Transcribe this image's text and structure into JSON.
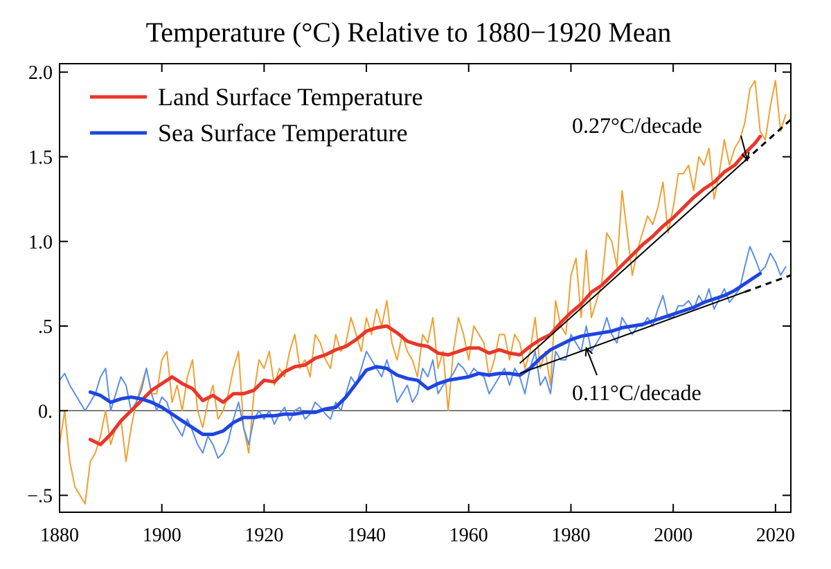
{
  "chart_data": {
    "type": "line",
    "title": "Temperature (°C) Relative to 1880−1920 Mean",
    "xlabel": "",
    "ylabel": "",
    "xlim": [
      1880,
      2023
    ],
    "ylim": [
      -0.6,
      2.05
    ],
    "x_ticks": [
      1880,
      1900,
      1920,
      1940,
      1960,
      1980,
      2000,
      2020
    ],
    "x_tick_labels": [
      "1880",
      "1900",
      "1920",
      "1940",
      "1960",
      "1980",
      "2000",
      "2020"
    ],
    "y_ticks": [
      -0.5,
      0,
      0.5,
      1.0,
      1.5,
      2.0
    ],
    "y_tick_labels": [
      "−.5",
      "0.",
      ".5",
      "1.0",
      "1.5",
      "2.0"
    ],
    "zero_line": true,
    "legend": {
      "position": "top-left",
      "entries": [
        {
          "label": "Land Surface Temperature",
          "color": "#e8372a"
        },
        {
          "label": "Sea Surface Temperature",
          "color": "#1f45e0"
        }
      ]
    },
    "series": [
      {
        "name": "Land Surface Temperature (running mean)",
        "color": "#e8372a",
        "x": [
          1886,
          1888,
          1890,
          1892,
          1894,
          1896,
          1898,
          1900,
          1902,
          1904,
          1906,
          1908,
          1910,
          1912,
          1914,
          1916,
          1918,
          1920,
          1922,
          1924,
          1926,
          1928,
          1930,
          1932,
          1934,
          1936,
          1938,
          1940,
          1942,
          1944,
          1946,
          1948,
          1950,
          1952,
          1954,
          1956,
          1958,
          1960,
          1962,
          1964,
          1966,
          1968,
          1970,
          1972,
          1974,
          1976,
          1978,
          1980,
          1982,
          1984,
          1986,
          1988,
          1990,
          1992,
          1994,
          1996,
          1998,
          2000,
          2002,
          2004,
          2006,
          2008,
          2010,
          2012,
          2014,
          2016,
          2017
        ],
        "y": [
          -0.17,
          -0.2,
          -0.14,
          -0.06,
          0.0,
          0.06,
          0.12,
          0.16,
          0.2,
          0.16,
          0.13,
          0.06,
          0.09,
          0.05,
          0.1,
          0.1,
          0.12,
          0.18,
          0.17,
          0.23,
          0.26,
          0.27,
          0.31,
          0.33,
          0.36,
          0.38,
          0.42,
          0.47,
          0.49,
          0.5,
          0.46,
          0.41,
          0.39,
          0.38,
          0.34,
          0.33,
          0.35,
          0.37,
          0.37,
          0.34,
          0.36,
          0.34,
          0.33,
          0.38,
          0.42,
          0.45,
          0.52,
          0.58,
          0.63,
          0.7,
          0.74,
          0.8,
          0.86,
          0.92,
          0.98,
          1.03,
          1.09,
          1.14,
          1.2,
          1.26,
          1.31,
          1.35,
          1.41,
          1.45,
          1.52,
          1.58,
          1.62
        ]
      },
      {
        "name": "Sea Surface Temperature (running mean)",
        "color": "#1f45e0",
        "x": [
          1886,
          1888,
          1890,
          1892,
          1894,
          1896,
          1898,
          1900,
          1902,
          1904,
          1906,
          1908,
          1910,
          1912,
          1914,
          1916,
          1918,
          1920,
          1922,
          1924,
          1926,
          1928,
          1930,
          1932,
          1934,
          1936,
          1938,
          1940,
          1942,
          1944,
          1946,
          1948,
          1950,
          1952,
          1954,
          1956,
          1958,
          1960,
          1962,
          1964,
          1966,
          1968,
          1970,
          1972,
          1974,
          1976,
          1978,
          1980,
          1982,
          1984,
          1986,
          1988,
          1990,
          1992,
          1994,
          1996,
          1998,
          2000,
          2002,
          2004,
          2006,
          2008,
          2010,
          2012,
          2014,
          2016,
          2017
        ],
        "y": [
          0.11,
          0.09,
          0.05,
          0.07,
          0.08,
          0.07,
          0.05,
          0.02,
          -0.02,
          -0.06,
          -0.1,
          -0.14,
          -0.14,
          -0.12,
          -0.07,
          -0.04,
          -0.04,
          -0.03,
          -0.03,
          -0.02,
          -0.02,
          -0.01,
          -0.01,
          0.01,
          0.02,
          0.08,
          0.16,
          0.24,
          0.26,
          0.25,
          0.21,
          0.19,
          0.18,
          0.13,
          0.16,
          0.18,
          0.19,
          0.2,
          0.22,
          0.21,
          0.22,
          0.22,
          0.21,
          0.25,
          0.31,
          0.36,
          0.39,
          0.42,
          0.44,
          0.45,
          0.46,
          0.47,
          0.49,
          0.5,
          0.51,
          0.53,
          0.55,
          0.57,
          0.59,
          0.61,
          0.64,
          0.66,
          0.68,
          0.71,
          0.75,
          0.79,
          0.81
        ]
      },
      {
        "name": "Land Surface Temperature (monthly)",
        "color": "#f0a030",
        "x": [
          1880,
          1881,
          1882,
          1883,
          1884,
          1885,
          1886,
          1887,
          1888,
          1889,
          1890,
          1891,
          1892,
          1893,
          1894,
          1895,
          1896,
          1897,
          1898,
          1899,
          1900,
          1901,
          1902,
          1903,
          1904,
          1905,
          1906,
          1907,
          1908,
          1909,
          1910,
          1911,
          1912,
          1913,
          1914,
          1915,
          1916,
          1917,
          1918,
          1919,
          1920,
          1921,
          1922,
          1923,
          1924,
          1925,
          1926,
          1927,
          1928,
          1929,
          1930,
          1931,
          1932,
          1933,
          1934,
          1935,
          1936,
          1937,
          1938,
          1939,
          1940,
          1941,
          1942,
          1943,
          1944,
          1945,
          1946,
          1947,
          1948,
          1949,
          1950,
          1951,
          1952,
          1953,
          1954,
          1955,
          1956,
          1957,
          1958,
          1959,
          1960,
          1961,
          1962,
          1963,
          1964,
          1965,
          1966,
          1967,
          1968,
          1969,
          1970,
          1971,
          1972,
          1973,
          1974,
          1975,
          1976,
          1977,
          1978,
          1979,
          1980,
          1981,
          1982,
          1983,
          1984,
          1985,
          1986,
          1987,
          1988,
          1989,
          1990,
          1991,
          1992,
          1993,
          1994,
          1995,
          1996,
          1997,
          1998,
          1999,
          2000,
          2001,
          2002,
          2003,
          2004,
          2005,
          2006,
          2007,
          2008,
          2009,
          2010,
          2011,
          2012,
          2013,
          2014,
          2015,
          2016,
          2017,
          2018,
          2019,
          2020,
          2021,
          2022
        ],
        "y": [
          -0.2,
          0.0,
          -0.3,
          -0.45,
          -0.5,
          -0.55,
          -0.3,
          -0.25,
          -0.15,
          0.0,
          -0.2,
          -0.1,
          -0.05,
          -0.3,
          -0.1,
          0.05,
          0.15,
          0.25,
          0.1,
          0.1,
          0.3,
          0.35,
          0.05,
          0.15,
          0.0,
          0.2,
          0.3,
          0.0,
          -0.1,
          0.05,
          0.15,
          -0.05,
          0.0,
          0.1,
          0.25,
          0.35,
          -0.1,
          -0.25,
          0.1,
          0.3,
          0.25,
          0.35,
          0.15,
          0.25,
          0.2,
          0.35,
          0.45,
          0.25,
          0.3,
          0.2,
          0.45,
          0.4,
          0.3,
          0.25,
          0.45,
          0.35,
          0.4,
          0.55,
          0.45,
          0.35,
          0.55,
          0.45,
          0.6,
          0.5,
          0.65,
          0.4,
          0.3,
          0.45,
          0.35,
          0.3,
          0.2,
          0.45,
          0.4,
          0.55,
          0.25,
          0.35,
          0.0,
          0.35,
          0.55,
          0.45,
          0.3,
          0.5,
          0.45,
          0.4,
          0.2,
          0.3,
          0.45,
          0.45,
          0.3,
          0.45,
          0.4,
          0.25,
          0.35,
          0.55,
          0.25,
          0.35,
          0.15,
          0.65,
          0.5,
          0.45,
          0.8,
          0.9,
          0.55,
          0.95,
          0.55,
          0.65,
          0.75,
          1.05,
          1.0,
          0.85,
          1.3,
          1.05,
          0.8,
          0.95,
          1.05,
          1.15,
          1.1,
          1.2,
          1.35,
          1.05,
          1.2,
          1.4,
          1.4,
          1.45,
          1.3,
          1.5,
          1.45,
          1.55,
          1.25,
          1.4,
          1.6,
          1.45,
          1.55,
          1.6,
          1.7,
          1.9,
          1.95,
          1.65,
          1.6,
          1.8,
          1.95,
          1.65,
          1.75
        ]
      },
      {
        "name": "Sea Surface Temperature (monthly)",
        "color": "#5a8ee8",
        "x": [
          1880,
          1881,
          1882,
          1883,
          1884,
          1885,
          1886,
          1887,
          1888,
          1889,
          1890,
          1891,
          1892,
          1893,
          1894,
          1895,
          1896,
          1897,
          1898,
          1899,
          1900,
          1901,
          1902,
          1903,
          1904,
          1905,
          1906,
          1907,
          1908,
          1909,
          1910,
          1911,
          1912,
          1913,
          1914,
          1915,
          1916,
          1917,
          1918,
          1919,
          1920,
          1921,
          1922,
          1923,
          1924,
          1925,
          1926,
          1927,
          1928,
          1929,
          1930,
          1931,
          1932,
          1933,
          1934,
          1935,
          1936,
          1937,
          1938,
          1939,
          1940,
          1941,
          1942,
          1943,
          1944,
          1945,
          1946,
          1947,
          1948,
          1949,
          1950,
          1951,
          1952,
          1953,
          1954,
          1955,
          1956,
          1957,
          1958,
          1959,
          1960,
          1961,
          1962,
          1963,
          1964,
          1965,
          1966,
          1967,
          1968,
          1969,
          1970,
          1971,
          1972,
          1973,
          1974,
          1975,
          1976,
          1977,
          1978,
          1979,
          1980,
          1981,
          1982,
          1983,
          1984,
          1985,
          1986,
          1987,
          1988,
          1989,
          1990,
          1991,
          1992,
          1993,
          1994,
          1995,
          1996,
          1997,
          1998,
          1999,
          2000,
          2001,
          2002,
          2003,
          2004,
          2005,
          2006,
          2007,
          2008,
          2009,
          2010,
          2011,
          2012,
          2013,
          2014,
          2015,
          2016,
          2017,
          2018,
          2019,
          2020,
          2021,
          2022
        ],
        "y": [
          0.18,
          0.22,
          0.15,
          0.1,
          0.05,
          0.0,
          0.05,
          0.1,
          0.2,
          0.25,
          0.0,
          0.1,
          0.2,
          0.15,
          0.0,
          0.05,
          0.12,
          0.25,
          0.1,
          0.0,
          0.08,
          0.05,
          -0.05,
          -0.1,
          -0.15,
          -0.05,
          -0.12,
          -0.2,
          -0.25,
          -0.15,
          -0.2,
          -0.28,
          -0.25,
          -0.18,
          -0.05,
          0.05,
          -0.1,
          -0.2,
          -0.05,
          0.0,
          -0.05,
          0.0,
          -0.08,
          -0.02,
          0.02,
          -0.06,
          0.0,
          0.02,
          -0.05,
          -0.02,
          0.05,
          0.02,
          -0.02,
          -0.05,
          0.05,
          0.0,
          0.1,
          0.2,
          0.15,
          0.25,
          0.35,
          0.3,
          0.25,
          0.2,
          0.3,
          0.2,
          0.05,
          0.1,
          0.15,
          0.05,
          0.1,
          0.25,
          0.2,
          0.3,
          0.1,
          0.15,
          0.18,
          0.22,
          0.28,
          0.25,
          0.2,
          0.25,
          0.22,
          0.2,
          0.1,
          0.15,
          0.2,
          0.25,
          0.15,
          0.25,
          0.2,
          0.1,
          0.25,
          0.35,
          0.15,
          0.2,
          0.1,
          0.35,
          0.3,
          0.3,
          0.45,
          0.4,
          0.35,
          0.5,
          0.35,
          0.4,
          0.45,
          0.55,
          0.45,
          0.4,
          0.55,
          0.5,
          0.45,
          0.5,
          0.5,
          0.55,
          0.5,
          0.6,
          0.68,
          0.55,
          0.55,
          0.62,
          0.62,
          0.65,
          0.6,
          0.68,
          0.63,
          0.72,
          0.6,
          0.66,
          0.72,
          0.64,
          0.68,
          0.72,
          0.85,
          0.97,
          0.9,
          0.82,
          0.85,
          0.93,
          0.88,
          0.8,
          0.85
        ]
      }
    ],
    "trend_lines": [
      {
        "name": "land-trend",
        "x": [
          1970,
          2023
        ],
        "y": [
          0.28,
          1.72
        ],
        "solid_until": 2014
      },
      {
        "name": "sea-trend",
        "x": [
          1970,
          2023
        ],
        "y": [
          0.22,
          0.8
        ],
        "solid_until": 2014
      }
    ],
    "annotations": [
      {
        "text": "0.27°C/decade",
        "x": 1979,
        "y": 1.67,
        "arrow_to": [
          2014.5,
          1.48
        ]
      },
      {
        "text": "0.11°C/decade",
        "x": 1980,
        "y": 0.1,
        "arrow_to": [
          1983,
          0.37
        ]
      }
    ]
  }
}
